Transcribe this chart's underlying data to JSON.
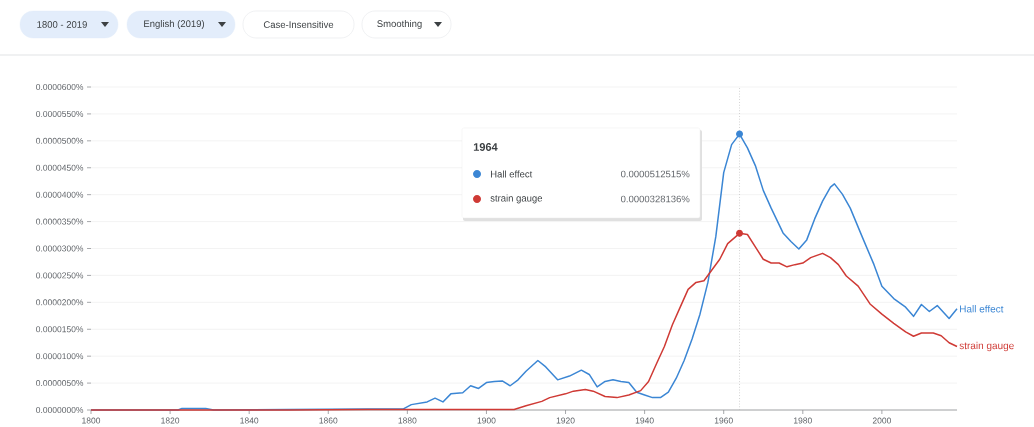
{
  "chart_data": {
    "type": "line",
    "annotations": [
      "1800 - 2019",
      "English (2019)",
      "Case-Insensitive",
      "Smoothing",
      "1964",
      "0.0000512515%",
      "0.0000328136%"
    ],
    "legend": "top",
    "series": [
      {
        "name": "Hall effect",
        "color": "#3b86d4",
        "x": [
          1800,
          1822,
          1823,
          1829,
          1831,
          1850,
          1870,
          1879,
          1881,
          1885,
          1887,
          1889,
          1891,
          1894,
          1896,
          1898,
          1900,
          1902,
          1904,
          1906,
          1908,
          1910,
          1913,
          1915,
          1918,
          1921,
          1924,
          1926,
          1928,
          1930,
          1932,
          1934,
          1936,
          1938,
          1940,
          1942,
          1944,
          1946,
          1948,
          1950,
          1952,
          1954,
          1956,
          1958,
          1960,
          1962,
          1964,
          1966,
          1968,
          1970,
          1972,
          1975,
          1977,
          1979,
          1981,
          1983,
          1985,
          1987,
          1988,
          1990,
          1992,
          1995,
          1998,
          2000,
          2003,
          2006,
          2008,
          2010,
          2012,
          2014,
          2017,
          2019
        ],
        "values": [
          0,
          0,
          3e-07,
          3e-07,
          0,
          1e-07,
          2e-07,
          2e-07,
          1e-06,
          1.5e-06,
          2.2e-06,
          1.5e-06,
          3e-06,
          3.2e-06,
          4.5e-06,
          4e-06,
          5.1e-06,
          5.3e-06,
          5.4e-06,
          4.5e-06,
          5.6e-06,
          7.2e-06,
          9.2e-06,
          8e-06,
          5.6e-06,
          6.3e-06,
          7.4e-06,
          6.6e-06,
          4.3e-06,
          5.3e-06,
          5.6e-06,
          5.3e-06,
          5.1e-06,
          3.3e-06,
          2.8e-06,
          2.3e-06,
          2.3e-06,
          3.3e-06,
          5.9e-06,
          9.2e-06,
          1.32e-05,
          1.78e-05,
          2.37e-05,
          3.22e-05,
          4.41e-05,
          4.93e-05,
          5.12515e-05,
          4.87e-05,
          4.54e-05,
          4.08e-05,
          3.75e-05,
          3.29e-05,
          3.13e-05,
          2.99e-05,
          3.16e-05,
          3.55e-05,
          3.88e-05,
          4.14e-05,
          4.2e-05,
          4.01e-05,
          3.75e-05,
          3.22e-05,
          2.7e-05,
          2.3e-05,
          2.07e-05,
          1.91e-05,
          1.74e-05,
          1.96e-05,
          1.83e-05,
          1.94e-05,
          1.7e-05,
          1.88e-05
        ]
      },
      {
        "name": "strain gauge",
        "color": "#cf3a35",
        "x": [
          1800,
          1850,
          1870,
          1907,
          1910,
          1914,
          1916,
          1920,
          1922,
          1925,
          1927,
          1930,
          1933,
          1936,
          1939,
          1941,
          1943,
          1945,
          1947,
          1949,
          1951,
          1953,
          1955,
          1957,
          1959,
          1961,
          1964,
          1966,
          1968,
          1970,
          1972,
          1974,
          1976,
          1978,
          1980,
          1982,
          1985,
          1987,
          1989,
          1991,
          1994,
          1997,
          2000,
          2003,
          2006,
          2008,
          2010,
          2013,
          2015,
          2017,
          2019
        ],
        "values": [
          0,
          0,
          1e-07,
          1e-07,
          8e-07,
          1.6e-06,
          2.3e-06,
          3e-06,
          3.5e-06,
          3.8e-06,
          3.5e-06,
          2.5e-06,
          2.3e-06,
          2.8e-06,
          3.6e-06,
          5.3e-06,
          8.6e-06,
          1.18e-05,
          1.58e-05,
          1.91e-05,
          2.24e-05,
          2.37e-05,
          2.4e-05,
          2.6e-05,
          2.8e-05,
          3.09e-05,
          3.28136e-05,
          3.26e-05,
          3.03e-05,
          2.8e-05,
          2.73e-05,
          2.73e-05,
          2.66e-05,
          2.7e-05,
          2.73e-05,
          2.83e-05,
          2.91e-05,
          2.83e-05,
          2.7e-05,
          2.49e-05,
          2.3e-05,
          1.97e-05,
          1.78e-05,
          1.61e-05,
          1.45e-05,
          1.37e-05,
          1.43e-05,
          1.43e-05,
          1.38e-05,
          1.25e-05,
          1.18e-05
        ]
      }
    ],
    "xlim": [
      1800,
      2019
    ],
    "ylim": [
      0,
      6e-05
    ],
    "xticks": [
      1800,
      1820,
      1840,
      1860,
      1880,
      1900,
      1920,
      1940,
      1960,
      1980,
      2000
    ],
    "yticks": [
      {
        "value": 0,
        "label": "0.0000000%"
      },
      {
        "value": 5e-06,
        "label": "0.0000050%"
      },
      {
        "value": 1e-05,
        "label": "0.0000100%"
      },
      {
        "value": 1.5e-05,
        "label": "0.0000150%"
      },
      {
        "value": 2e-05,
        "label": "0.0000200%"
      },
      {
        "value": 2.5e-05,
        "label": "0.0000250%"
      },
      {
        "value": 3e-05,
        "label": "0.0000300%"
      },
      {
        "value": 3.5e-05,
        "label": "0.0000350%"
      },
      {
        "value": 4e-05,
        "label": "0.0000400%"
      },
      {
        "value": 4.5e-05,
        "label": "0.0000450%"
      },
      {
        "value": 5e-05,
        "label": "0.0000500%"
      },
      {
        "value": 5.5e-05,
        "label": "0.0000550%"
      },
      {
        "value": 6e-05,
        "label": "0.0000600%"
      }
    ],
    "grid": "y",
    "ref_lines": [
      {
        "axis": "x",
        "value": 1964,
        "line_style": "dotted",
        "color": "#bdbdbd"
      }
    ]
  }
}
